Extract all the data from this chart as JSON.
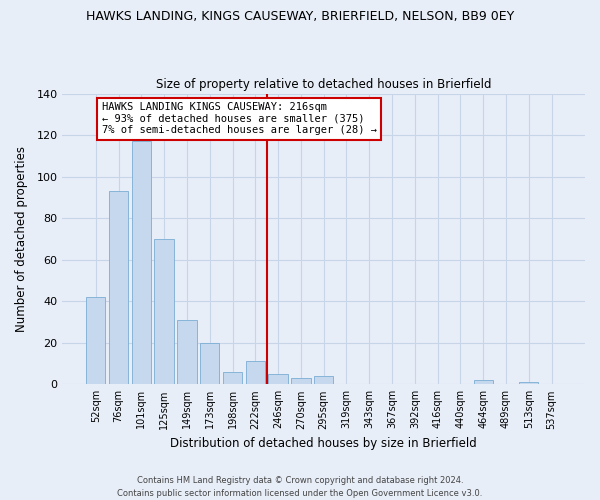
{
  "title": "HAWKS LANDING, KINGS CAUSEWAY, BRIERFIELD, NELSON, BB9 0EY",
  "subtitle": "Size of property relative to detached houses in Brierfield",
  "xlabel": "Distribution of detached houses by size in Brierfield",
  "ylabel": "Number of detached properties",
  "bar_labels": [
    "52sqm",
    "76sqm",
    "101sqm",
    "125sqm",
    "149sqm",
    "173sqm",
    "198sqm",
    "222sqm",
    "246sqm",
    "270sqm",
    "295sqm",
    "319sqm",
    "343sqm",
    "367sqm",
    "392sqm",
    "416sqm",
    "440sqm",
    "464sqm",
    "489sqm",
    "513sqm",
    "537sqm"
  ],
  "bar_values": [
    42,
    93,
    117,
    70,
    31,
    20,
    6,
    11,
    5,
    3,
    4,
    0,
    0,
    0,
    0,
    0,
    0,
    2,
    0,
    1,
    0
  ],
  "bar_color": "#c5d8ed",
  "bar_edge_color": "#7aaed4",
  "vline_x": 7.5,
  "vline_color": "#cc0000",
  "annotation_title": "HAWKS LANDING KINGS CAUSEWAY: 216sqm",
  "annotation_line1": "← 93% of detached houses are smaller (375)",
  "annotation_line2": "7% of semi-detached houses are larger (28) →",
  "ylim": [
    0,
    140
  ],
  "yticks": [
    0,
    20,
    40,
    60,
    80,
    100,
    120,
    140
  ],
  "footer1": "Contains HM Land Registry data © Crown copyright and database right 2024.",
  "footer2": "Contains public sector information licensed under the Open Government Licence v3.0.",
  "bg_color": "#e8eef8",
  "plot_bg_color": "#e8eef8",
  "grid_color": "#c8d4e8"
}
